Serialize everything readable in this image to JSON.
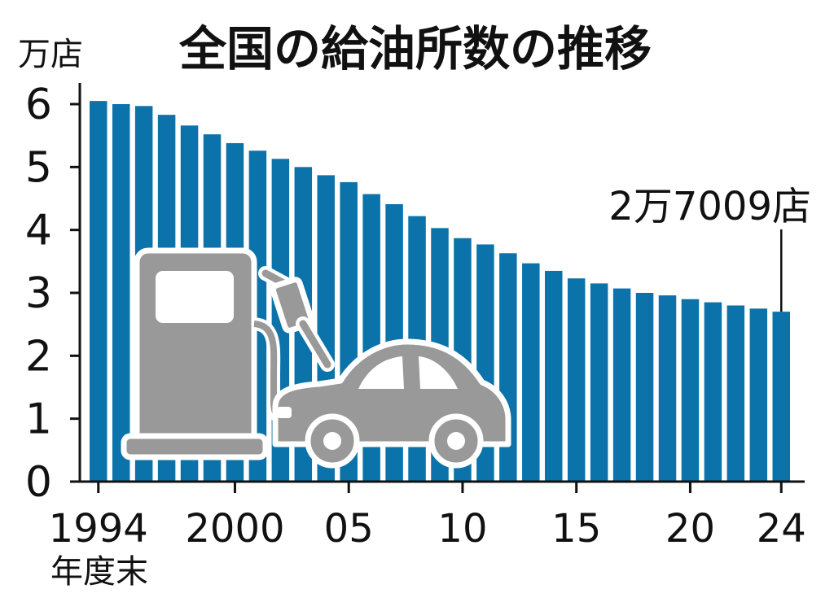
{
  "chart_data": {
    "type": "bar",
    "title": "全国の給油所数の推移",
    "ylabel": "万店",
    "xlabel": "年度末",
    "ylim": [
      0,
      6
    ],
    "yticks": [
      "0",
      "1",
      "2",
      "3",
      "4",
      "5",
      "6"
    ],
    "x": [
      1994,
      1995,
      1996,
      1997,
      1998,
      1999,
      2000,
      2001,
      2002,
      2003,
      2004,
      2005,
      2006,
      2007,
      2008,
      2009,
      2010,
      2011,
      2012,
      2013,
      2014,
      2015,
      2016,
      2017,
      2018,
      2019,
      2020,
      2021,
      2022,
      2023,
      2024
    ],
    "values": [
      6.05,
      6.0,
      5.97,
      5.83,
      5.66,
      5.52,
      5.38,
      5.26,
      5.13,
      5.0,
      4.87,
      4.76,
      4.57,
      4.41,
      4.22,
      4.03,
      3.87,
      3.77,
      3.63,
      3.47,
      3.35,
      3.23,
      3.15,
      3.07,
      3.0,
      2.96,
      2.9,
      2.85,
      2.8,
      2.75,
      2.7009
    ],
    "xticks": [
      {
        "index": 0,
        "label": "1994"
      },
      {
        "index": 6,
        "label": "2000"
      },
      {
        "index": 11,
        "label": "05"
      },
      {
        "index": 16,
        "label": "10"
      },
      {
        "index": 21,
        "label": "15"
      },
      {
        "index": 26,
        "label": "20"
      },
      {
        "index": 30,
        "label": "24"
      }
    ],
    "annotation": {
      "index": 30,
      "text": "2万7009店"
    },
    "grid": false,
    "legend": "none",
    "bar_color": "#0c73aa",
    "illustration_color": "#999999",
    "illustration_icons": [
      "fuel-pump-icon",
      "car-icon"
    ]
  }
}
